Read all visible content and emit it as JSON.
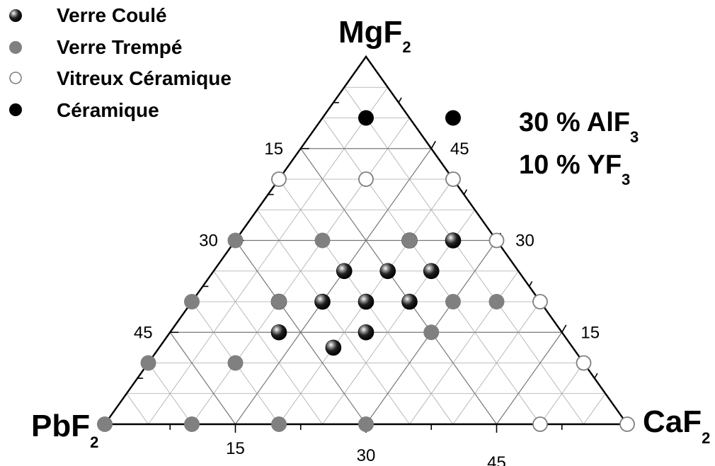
{
  "legend": {
    "placement": "top-left",
    "items": [
      {
        "label": "Verre Coulé",
        "style": "shaded"
      },
      {
        "label": "Verre Trempé",
        "style": "gray"
      },
      {
        "label": "Vitreux Céramique",
        "style": "open"
      },
      {
        "label": "Céramique",
        "style": "black"
      }
    ]
  },
  "annotation": {
    "line1_main": "30 % AlF",
    "line1_sub": "3",
    "line2_main": "10 % YF",
    "line2_sub": "3"
  },
  "colors": {
    "gray": "#808080",
    "black": "#000000",
    "grid": "#aaaaaa",
    "grid_major": "#777777"
  },
  "chart_data": {
    "type": "scatter",
    "subtype": "ternary",
    "apex_labels": {
      "top": {
        "main": "MgF",
        "sub": "2"
      },
      "left": {
        "main": "PbF",
        "sub": "2"
      },
      "right": {
        "main": "CaF",
        "sub": "2"
      }
    },
    "axis_max": 60,
    "grid_step": 5,
    "major_step": 15,
    "ticks": {
      "left_edge": [
        "15",
        "30",
        "45"
      ],
      "right_edge": [
        "45",
        "30",
        "15"
      ],
      "bottom_edge": [
        "15",
        "30",
        "45"
      ]
    },
    "coordinate_order": [
      "CaF2",
      "MgF2",
      "PbF2"
    ],
    "series": [
      {
        "name": "Verre Coulé",
        "points": [
          [
            20,
            30,
            10
          ],
          [
            25,
            30,
            5
          ],
          [
            15,
            25,
            20
          ],
          [
            20,
            25,
            15
          ],
          [
            25,
            25,
            10
          ],
          [
            10,
            20,
            30
          ],
          [
            15,
            20,
            25
          ],
          [
            20,
            20,
            20
          ],
          [
            25,
            20,
            15
          ],
          [
            22.5,
            15,
            22.5
          ],
          [
            12.5,
            15,
            32.5
          ],
          [
            20,
            12.5,
            27.5
          ]
        ]
      },
      {
        "name": "Verre Trempé",
        "points": [
          [
            0,
            0,
            60
          ],
          [
            10,
            0,
            50
          ],
          [
            20,
            0,
            40
          ],
          [
            30,
            0,
            30
          ],
          [
            0,
            10,
            50
          ],
          [
            10,
            10,
            40
          ],
          [
            0,
            20,
            40
          ],
          [
            10,
            20,
            30
          ],
          [
            30,
            20,
            10
          ],
          [
            35,
            20,
            5
          ],
          [
            30,
            15,
            15
          ],
          [
            0,
            30,
            30
          ],
          [
            10,
            30,
            20
          ],
          [
            20,
            30,
            10
          ]
        ]
      },
      {
        "name": "Vitreux Céramique",
        "points": [
          [
            0,
            40,
            20
          ],
          [
            10,
            40,
            10
          ],
          [
            20,
            40,
            0
          ],
          [
            30,
            30,
            0
          ],
          [
            40,
            20,
            0
          ],
          [
            50,
            10,
            0
          ],
          [
            50,
            0,
            10
          ],
          [
            60,
            0,
            0
          ]
        ]
      },
      {
        "name": "Céramique",
        "points": [
          [
            5,
            50,
            5
          ],
          [
            15,
            50,
            0
          ]
        ]
      }
    ]
  }
}
